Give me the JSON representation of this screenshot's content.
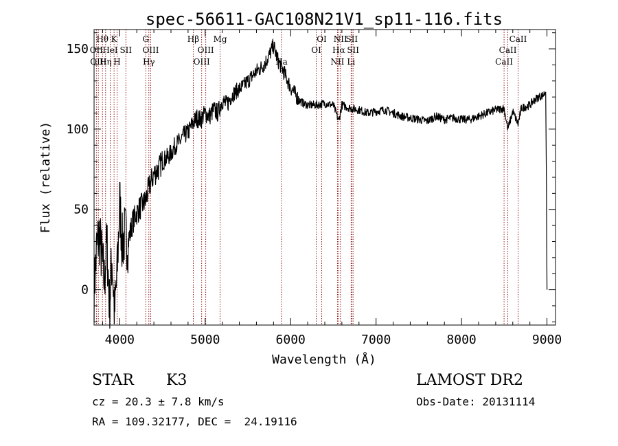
{
  "chart_data": {
    "type": "line",
    "title": "spec-56611-GAC108N21V1_sp11-116.fits",
    "xlabel": "Wavelength (Å)",
    "ylabel": "Flux (relative)",
    "xlim": [
      3700,
      9100
    ],
    "ylim": [
      -22,
      162
    ],
    "x_ticks": [
      4000,
      5000,
      6000,
      7000,
      8000,
      9000
    ],
    "y_ticks": [
      0,
      50,
      100,
      150
    ],
    "x_tick_labels": [
      "4000",
      "5000",
      "6000",
      "7000",
      "8000",
      "9000"
    ],
    "y_tick_labels": [
      "0",
      "50",
      "100",
      "150"
    ],
    "grid": false,
    "line_color": "#000000",
    "marker_color": "#8b0000",
    "series": [
      {
        "x": [
          3700,
          3730,
          3760,
          3790,
          3820,
          3850,
          3880,
          3910,
          3940,
          3970,
          4000,
          4030,
          4060,
          4100,
          4150,
          4200,
          4250,
          4300,
          4350,
          4400,
          4450,
          4500,
          4550,
          4600,
          4650,
          4700,
          4750,
          4800,
          4850,
          4900,
          4950,
          5000,
          5050,
          5100,
          5150,
          5200,
          5250,
          5300,
          5350,
          5400,
          5450,
          5500,
          5550,
          5600,
          5650,
          5700,
          5750,
          5800,
          5850,
          5900,
          5950,
          6000,
          6050,
          6100,
          6150,
          6200,
          6300,
          6400,
          6500,
          6563,
          6600,
          6700,
          6800,
          6900,
          7000,
          7100,
          7200,
          7300,
          7400,
          7500,
          7600,
          7700,
          7800,
          7900,
          8000,
          8100,
          8200,
          8300,
          8400,
          8498,
          8542,
          8600,
          8662,
          8700,
          8750,
          8800,
          8850,
          8900,
          8950,
          8985,
          8995,
          9000
        ],
        "y": [
          0,
          25,
          35,
          20,
          5,
          30,
          -10,
          20,
          -15,
          10,
          55,
          28,
          35,
          30,
          42,
          48,
          52,
          55,
          65,
          72,
          75,
          80,
          82,
          85,
          90,
          92,
          96,
          98,
          103,
          107,
          106,
          110,
          108,
          112,
          110,
          118,
          115,
          120,
          123,
          125,
          127,
          130,
          133,
          136,
          138,
          141,
          146,
          152,
          143,
          138,
          132,
          126,
          122,
          118,
          116,
          115,
          115,
          116,
          115,
          105,
          115,
          113,
          112,
          110,
          111,
          112,
          110,
          108,
          107,
          106,
          105,
          108,
          106,
          107,
          106,
          106,
          108,
          110,
          112,
          113,
          100,
          111,
          103,
          113,
          114,
          115,
          118,
          120,
          121,
          123,
          60,
          0
        ]
      }
    ],
    "spectral_lines": [
      {
        "name": "Hθ",
        "x": 3798,
        "tier": 0
      },
      {
        "name": "K",
        "x": 3934,
        "tier": 0
      },
      {
        "name": "OII",
        "x": 3727,
        "tier": 1
      },
      {
        "name": "HeI",
        "x": 3889,
        "tier": 1
      },
      {
        "name": "SII",
        "x": 4072,
        "tier": 1
      },
      {
        "name": "OIII",
        "x": 3750,
        "tier": 2
      },
      {
        "name": "Hη",
        "x": 3835,
        "tier": 2
      },
      {
        "name": "H",
        "x": 3969,
        "tier": 2
      },
      {
        "name": "G",
        "x": 4305,
        "tier": 0
      },
      {
        "name": "OIII",
        "x": 4363,
        "tier": 1
      },
      {
        "name": "Hγ",
        "x": 4341,
        "tier": 2
      },
      {
        "name": "Hβ",
        "x": 4861,
        "tier": 0
      },
      {
        "name": "OIII",
        "x": 5007,
        "tier": 1
      },
      {
        "name": "OIII",
        "x": 4959,
        "tier": 2
      },
      {
        "name": "Mg",
        "x": 5175,
        "tier": 0
      },
      {
        "name": "Na",
        "x": 5893,
        "tier": 2
      },
      {
        "name": "OI",
        "x": 6364,
        "tier": 0
      },
      {
        "name": "OI",
        "x": 6300,
        "tier": 1
      },
      {
        "name": "NII",
        "x": 6583,
        "tier": 0
      },
      {
        "name": "Hα",
        "x": 6563,
        "tier": 1
      },
      {
        "name": "NII",
        "x": 6548,
        "tier": 2
      },
      {
        "name": "SII",
        "x": 6716,
        "tier": 0
      },
      {
        "name": "SII",
        "x": 6731,
        "tier": 1
      },
      {
        "name": "Li",
        "x": 6708,
        "tier": 2
      },
      {
        "name": "CaII",
        "x": 8662,
        "tier": 0
      },
      {
        "name": "CaII",
        "x": 8542,
        "tier": 1
      },
      {
        "name": "CaII",
        "x": 8498,
        "tier": 2
      }
    ]
  },
  "info": {
    "object_class": "STAR",
    "subclass": "K3",
    "survey": "LAMOST DR2",
    "redshift": "cz = 20.3 ± 7.8 km/s",
    "obs_date": "Obs-Date: 20131114",
    "coords": "RA = 109.32177, DEC =  24.19116"
  }
}
